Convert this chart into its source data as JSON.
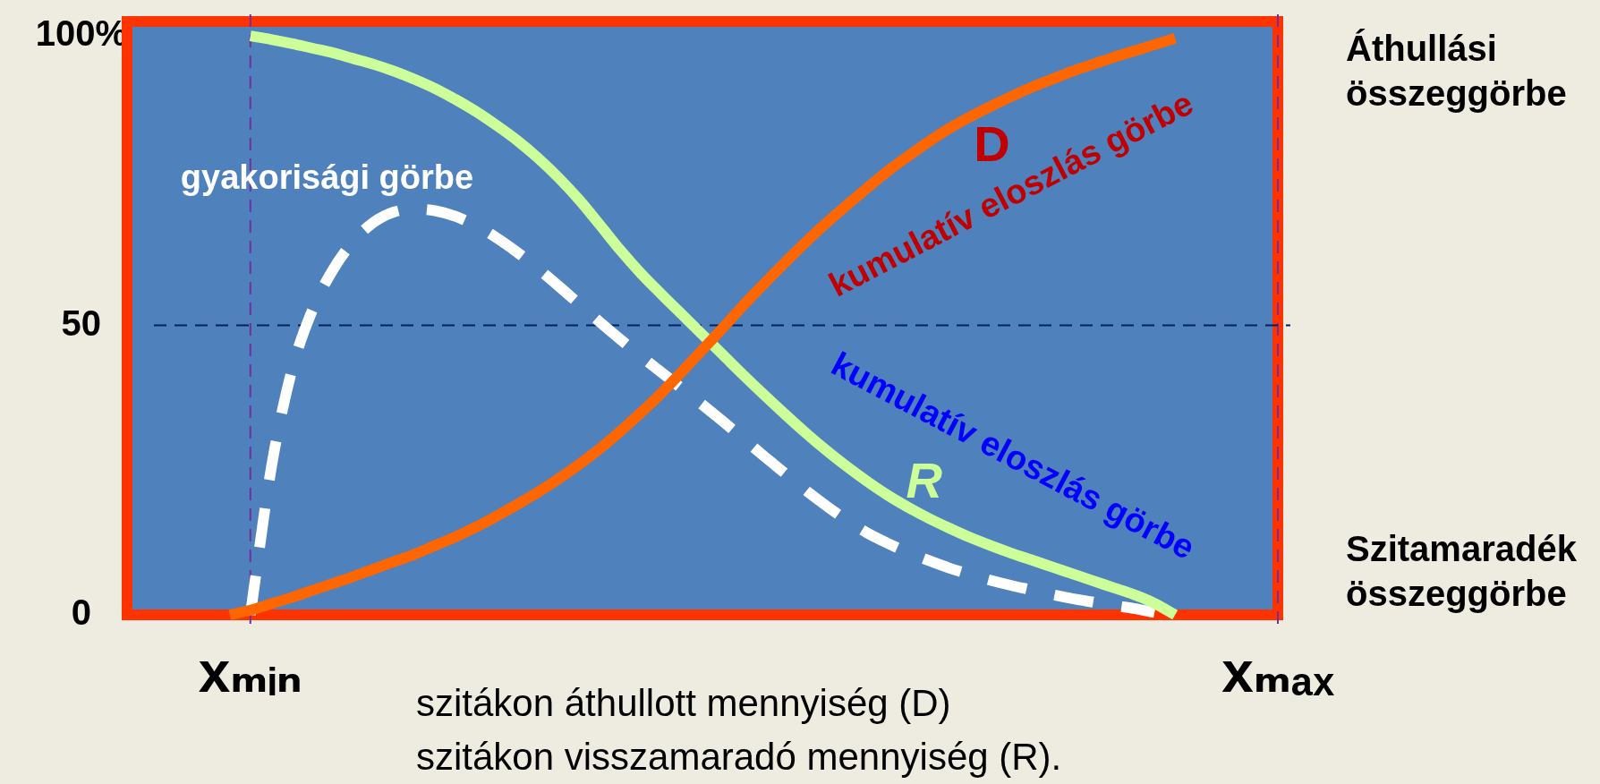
{
  "chart_data": {
    "type": "line",
    "xlabel": "szitákon áthullott mennyiség (D)\nszitákon visszamaradó mennyiség (R).",
    "categories": [
      null,
      null,
      null,
      null,
      null,
      null,
      "xₘᵢₙ",
      null,
      null,
      null,
      null,
      null,
      null,
      null,
      null,
      null,
      null,
      null,
      null,
      null,
      null,
      null,
      null,
      null,
      null,
      null,
      null,
      null,
      null,
      null,
      null,
      null,
      null,
      null,
      null,
      null,
      null,
      null,
      null,
      null,
      null,
      null,
      null,
      null,
      null,
      null,
      null,
      null,
      null,
      null,
      null,
      null,
      null,
      null,
      null,
      null,
      "xₘₐₓ"
    ],
    "ylim": [
      0,
      102.5
    ],
    "yticks": [
      0,
      50,
      {
        "value": 100,
        "label": "100%"
      }
    ],
    "marker": "none",
    "series": [
      {
        "name": "D",
        "color": "#ff6600",
        "values": [
          null,
          null,
          null,
          null,
          null,
          0,
          0.8,
          1.9,
          3,
          4.2,
          5.4,
          6.6,
          7.9,
          9.2,
          10.5,
          12,
          13.5,
          15.2,
          17.1,
          19.1,
          21.2,
          23.5,
          26,
          28.7,
          31.7,
          34.9,
          38.3,
          42,
          45.8,
          49.6,
          53.5,
          57.2,
          60.8,
          64.3,
          67.6,
          70.7,
          73.7,
          76.6,
          79.2,
          81.7,
          84,
          86,
          87.8,
          89.5,
          91.1,
          92.5,
          93.9,
          95.1,
          96.3,
          97.4,
          98.5,
          99.6,
          null,
          null,
          null,
          null,
          null
        ]
      },
      {
        "name": "R",
        "color": "#ccff99",
        "values": [
          null,
          null,
          null,
          null,
          null,
          null,
          100,
          99.4,
          98.7,
          97.9,
          97.1,
          96.1,
          95.1,
          93.9,
          92.5,
          90.9,
          89,
          86.9,
          84.5,
          81.9,
          78.9,
          75.5,
          71.7,
          67.4,
          63,
          59,
          55.4,
          51.9,
          48.4,
          44.9,
          41.4,
          38,
          34.7,
          31.5,
          28.5,
          25.7,
          23.1,
          20.7,
          18.6,
          16.7,
          15,
          13.4,
          12,
          10.7,
          9.5,
          8.3,
          7.1,
          5.9,
          4.7,
          3.5,
          2,
          0,
          null,
          null,
          null,
          null,
          null
        ]
      },
      {
        "name": "gyakorisági görbe",
        "color": "#ffffff",
        "line_style": "dashed",
        "values": [
          null,
          null,
          null,
          null,
          null,
          null,
          0,
          25,
          42,
          52.5,
          59.5,
          64.5,
          67.8,
          69.6,
          70.1,
          69.8,
          68.8,
          67.2,
          65.1,
          62.6,
          59.8,
          56.8,
          53.7,
          50.6,
          47.6,
          44.7,
          41.9,
          39.1,
          36.3,
          33.4,
          30.4,
          27.4,
          24.5,
          21.6,
          18.9,
          16.4,
          14.2,
          12.4,
          10.8,
          9.4,
          8.1,
          7,
          6,
          5.1,
          4.3,
          3.5,
          2.8,
          2.2,
          1.6,
          1.1,
          0.4,
          null,
          null,
          null,
          null,
          null,
          null
        ]
      }
    ],
    "ref_lines": [
      {
        "axis": "x",
        "value": "xₘᵢₙ",
        "color": "#7030a0",
        "line_style": "dashed"
      },
      {
        "axis": "x",
        "value": "xₘₐₓ",
        "color": "#7030a0",
        "line_style": "dashed"
      },
      {
        "axis": "y",
        "value": 50,
        "color": "#002060",
        "line_style": "dashed"
      }
    ],
    "annotations": [
      "Áthullási összeggörbe",
      "kumulatív eloszlás görbe",
      "kumulatív eloszlás görbe",
      "Szitamaradék összeggörbe"
    ]
  }
}
